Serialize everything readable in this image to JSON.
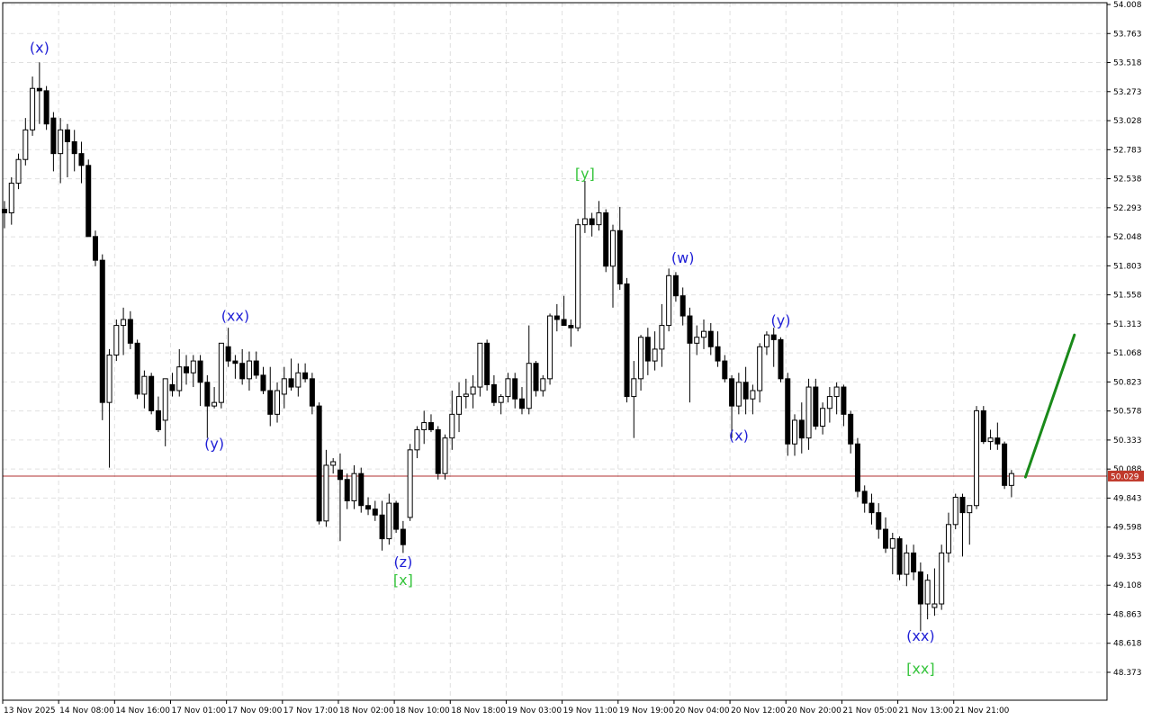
{
  "chart_data": {
    "type": "candlestick",
    "y_axis": {
      "min": 48.13,
      "max": 54.008,
      "ticks": [
        "54.008",
        "53.763",
        "53.518",
        "53.273",
        "53.028",
        "52.783",
        "52.538",
        "52.293",
        "52.048",
        "51.803",
        "51.558",
        "51.313",
        "51.068",
        "50.823",
        "50.578",
        "50.333",
        "50.088",
        "49.843",
        "49.598",
        "49.353",
        "49.108",
        "48.863",
        "48.618",
        "48.373"
      ]
    },
    "x_axis": {
      "ticks": [
        {
          "label": "13 Nov 2025",
          "index": 0
        },
        {
          "label": "14 Nov 08:00",
          "index": 8
        },
        {
          "label": "14 Nov 16:00",
          "index": 16
        },
        {
          "label": "17 Nov 01:00",
          "index": 24
        },
        {
          "label": "17 Nov 09:00",
          "index": 32
        },
        {
          "label": "17 Nov 17:00",
          "index": 40
        },
        {
          "label": "18 Nov 02:00",
          "index": 48
        },
        {
          "label": "18 Nov 10:00",
          "index": 56
        },
        {
          "label": "18 Nov 18:00",
          "index": 64
        },
        {
          "label": "19 Nov 03:00",
          "index": 72
        },
        {
          "label": "19 Nov 11:00",
          "index": 80
        },
        {
          "label": "19 Nov 19:00",
          "index": 88
        },
        {
          "label": "20 Nov 04:00",
          "index": 96
        },
        {
          "label": "20 Nov 12:00",
          "index": 104
        },
        {
          "label": "20 Nov 20:00",
          "index": 112
        },
        {
          "label": "21 Nov 05:00",
          "index": 120
        },
        {
          "label": "21 Nov 13:00",
          "index": 128
        },
        {
          "label": "21 Nov 21:00",
          "index": 136
        }
      ]
    },
    "candles": [
      [
        52.28,
        52.35,
        52.12,
        52.25
      ],
      [
        52.25,
        52.55,
        52.15,
        52.5
      ],
      [
        52.5,
        52.75,
        52.45,
        52.7
      ],
      [
        52.7,
        53.05,
        52.65,
        52.95
      ],
      [
        52.95,
        53.4,
        52.9,
        53.3
      ],
      [
        53.3,
        53.52,
        53.0,
        53.28
      ],
      [
        53.28,
        53.32,
        52.95,
        53.0
      ],
      [
        53.05,
        53.1,
        52.6,
        52.75
      ],
      [
        52.75,
        53.05,
        52.5,
        52.95
      ],
      [
        52.95,
        53.0,
        52.55,
        52.85
      ],
      [
        52.85,
        52.95,
        52.6,
        52.75
      ],
      [
        52.75,
        52.85,
        52.5,
        52.65
      ],
      [
        52.65,
        52.7,
        52.05,
        52.05
      ],
      [
        52.05,
        52.1,
        51.8,
        51.85
      ],
      [
        51.85,
        51.9,
        50.5,
        50.65
      ],
      [
        50.65,
        51.1,
        50.1,
        51.05
      ],
      [
        51.05,
        51.35,
        51.0,
        51.3
      ],
      [
        51.3,
        51.45,
        51.05,
        51.35
      ],
      [
        51.35,
        51.42,
        51.1,
        51.15
      ],
      [
        51.15,
        51.18,
        50.68,
        50.72
      ],
      [
        50.72,
        50.92,
        50.6,
        50.87
      ],
      [
        50.87,
        50.9,
        50.55,
        50.58
      ],
      [
        50.58,
        50.7,
        50.4,
        50.42
      ],
      [
        50.5,
        50.85,
        50.28,
        50.85
      ],
      [
        50.8,
        50.9,
        50.7,
        50.75
      ],
      [
        50.75,
        51.1,
        50.7,
        50.95
      ],
      [
        50.95,
        51.05,
        50.8,
        50.9
      ],
      [
        50.9,
        51.05,
        50.78,
        51.0
      ],
      [
        51.0,
        51.05,
        50.62,
        50.82
      ],
      [
        50.82,
        50.88,
        50.35,
        50.62
      ],
      [
        50.62,
        50.78,
        50.6,
        50.65
      ],
      [
        50.65,
        51.15,
        50.6,
        51.15
      ],
      [
        51.12,
        51.28,
        50.95,
        51.0
      ],
      [
        51.0,
        51.05,
        50.85,
        50.98
      ],
      [
        50.98,
        51.1,
        50.8,
        50.85
      ],
      [
        50.85,
        51.08,
        50.75,
        51.0
      ],
      [
        51.0,
        51.08,
        50.85,
        50.88
      ],
      [
        50.88,
        50.95,
        50.72,
        50.75
      ],
      [
        50.75,
        50.95,
        50.45,
        50.55
      ],
      [
        50.55,
        50.82,
        50.48,
        50.75
      ],
      [
        50.72,
        50.95,
        50.6,
        50.85
      ],
      [
        50.85,
        51.02,
        50.75,
        50.78
      ],
      [
        50.78,
        50.98,
        50.7,
        50.9
      ],
      [
        50.9,
        50.98,
        50.82,
        50.85
      ],
      [
        50.85,
        50.9,
        50.55,
        50.62
      ],
      [
        50.62,
        50.65,
        49.62,
        49.65
      ],
      [
        49.65,
        50.25,
        49.6,
        50.12
      ],
      [
        50.12,
        50.18,
        50.05,
        50.15
      ],
      [
        50.08,
        50.22,
        49.48,
        50.0
      ],
      [
        50.0,
        50.05,
        49.75,
        49.82
      ],
      [
        49.82,
        50.12,
        49.75,
        50.05
      ],
      [
        50.05,
        50.1,
        49.72,
        49.78
      ],
      [
        49.78,
        49.85,
        49.7,
        49.75
      ],
      [
        49.75,
        49.82,
        49.65,
        49.7
      ],
      [
        49.7,
        49.82,
        49.4,
        49.5
      ],
      [
        49.5,
        49.88,
        49.45,
        49.8
      ],
      [
        49.8,
        49.82,
        49.55,
        49.58
      ],
      [
        49.58,
        49.65,
        49.38,
        49.45
      ],
      [
        49.68,
        50.3,
        49.65,
        50.25
      ],
      [
        50.25,
        50.45,
        50.18,
        50.42
      ],
      [
        50.42,
        50.58,
        50.3,
        50.48
      ],
      [
        50.48,
        50.55,
        50.4,
        50.42
      ],
      [
        50.42,
        50.45,
        50.0,
        50.05
      ],
      [
        50.05,
        50.38,
        50.0,
        50.35
      ],
      [
        50.35,
        50.75,
        50.25,
        50.55
      ],
      [
        50.55,
        50.82,
        50.4,
        50.7
      ],
      [
        50.7,
        50.85,
        50.6,
        50.72
      ],
      [
        50.72,
        50.88,
        50.6,
        50.78
      ],
      [
        50.78,
        51.15,
        50.7,
        51.15
      ],
      [
        51.15,
        51.18,
        50.75,
        50.8
      ],
      [
        50.8,
        50.88,
        50.62,
        50.65
      ],
      [
        50.65,
        50.72,
        50.55,
        50.7
      ],
      [
        50.7,
        50.9,
        50.65,
        50.85
      ],
      [
        50.85,
        50.9,
        50.6,
        50.68
      ],
      [
        50.68,
        50.78,
        50.55,
        50.6
      ],
      [
        50.6,
        51.3,
        50.55,
        50.98
      ],
      [
        50.98,
        51.0,
        50.7,
        50.75
      ],
      [
        50.75,
        50.88,
        50.7,
        50.85
      ],
      [
        50.85,
        51.4,
        50.8,
        51.38
      ],
      [
        51.38,
        51.48,
        51.25,
        51.35
      ],
      [
        51.35,
        51.55,
        51.32,
        51.3
      ],
      [
        51.3,
        51.35,
        51.12,
        51.28
      ],
      [
        51.28,
        52.2,
        51.25,
        52.15
      ],
      [
        52.15,
        52.52,
        52.08,
        52.2
      ],
      [
        52.2,
        52.25,
        52.05,
        52.15
      ],
      [
        52.15,
        52.35,
        52.1,
        52.25
      ],
      [
        52.25,
        52.28,
        51.75,
        51.8
      ],
      [
        51.8,
        52.15,
        51.45,
        52.1
      ],
      [
        52.1,
        52.3,
        51.6,
        51.65
      ],
      [
        51.65,
        51.7,
        50.65,
        50.7
      ],
      [
        50.7,
        51.0,
        50.35,
        50.85
      ],
      [
        50.85,
        51.22,
        50.75,
        51.2
      ],
      [
        51.2,
        51.28,
        50.88,
        51.0
      ],
      [
        51.0,
        51.25,
        50.92,
        51.1
      ],
      [
        51.1,
        51.48,
        50.95,
        51.3
      ],
      [
        51.3,
        51.78,
        51.25,
        51.72
      ],
      [
        51.72,
        51.75,
        51.5,
        51.55
      ],
      [
        51.55,
        51.62,
        51.3,
        51.38
      ],
      [
        51.38,
        51.45,
        50.65,
        51.15
      ],
      [
        51.15,
        51.3,
        51.05,
        51.2
      ],
      [
        51.2,
        51.35,
        51.1,
        51.25
      ],
      [
        51.25,
        51.32,
        51.05,
        51.12
      ],
      [
        51.12,
        51.25,
        50.95,
        51.0
      ],
      [
        51.0,
        51.05,
        50.82,
        50.85
      ],
      [
        50.85,
        50.88,
        50.35,
        50.62
      ],
      [
        50.62,
        50.9,
        50.55,
        50.82
      ],
      [
        50.82,
        50.95,
        50.55,
        50.68
      ],
      [
        50.68,
        50.8,
        50.55,
        50.75
      ],
      [
        50.75,
        51.15,
        50.65,
        51.12
      ],
      [
        51.12,
        51.25,
        51.05,
        51.22
      ],
      [
        51.22,
        51.28,
        50.95,
        51.18
      ],
      [
        51.18,
        51.2,
        50.82,
        50.85
      ],
      [
        50.85,
        50.9,
        50.2,
        50.3
      ],
      [
        50.3,
        50.55,
        50.2,
        50.5
      ],
      [
        50.5,
        50.65,
        50.22,
        50.35
      ],
      [
        50.35,
        50.85,
        50.25,
        50.78
      ],
      [
        50.78,
        50.85,
        50.42,
        50.45
      ],
      [
        50.45,
        50.65,
        50.38,
        50.6
      ],
      [
        50.6,
        50.78,
        50.48,
        50.7
      ],
      [
        50.7,
        50.82,
        50.55,
        50.78
      ],
      [
        50.78,
        50.8,
        50.45,
        50.55
      ],
      [
        50.55,
        50.58,
        50.22,
        50.3
      ],
      [
        50.3,
        50.35,
        49.85,
        49.9
      ],
      [
        49.9,
        49.95,
        49.72,
        49.8
      ],
      [
        49.8,
        49.88,
        49.62,
        49.72
      ],
      [
        49.72,
        49.8,
        49.5,
        49.58
      ],
      [
        49.58,
        49.68,
        49.38,
        49.42
      ],
      [
        49.42,
        49.55,
        49.2,
        49.5
      ],
      [
        49.5,
        49.52,
        49.15,
        49.2
      ],
      [
        49.2,
        49.45,
        49.1,
        49.38
      ],
      [
        49.38,
        49.45,
        49.15,
        49.22
      ],
      [
        49.22,
        49.3,
        48.72,
        48.95
      ],
      [
        48.95,
        49.2,
        48.82,
        49.15
      ],
      [
        48.92,
        49.25,
        48.85,
        48.95
      ],
      [
        48.95,
        49.45,
        48.9,
        49.38
      ],
      [
        49.38,
        49.72,
        49.3,
        49.62
      ],
      [
        49.62,
        49.88,
        49.58,
        49.85
      ],
      [
        49.85,
        49.88,
        49.35,
        49.72
      ],
      [
        49.72,
        49.78,
        49.45,
        49.78
      ],
      [
        49.78,
        50.62,
        49.75,
        50.58
      ],
      [
        50.58,
        50.62,
        50.3,
        50.32
      ],
      [
        50.32,
        50.42,
        50.25,
        50.35
      ],
      [
        50.35,
        50.48,
        50.25,
        50.3
      ],
      [
        50.3,
        50.32,
        49.92,
        49.95
      ],
      [
        49.95,
        50.08,
        49.85,
        50.05
      ]
    ],
    "last_price": "50.029",
    "forecast": {
      "start_index": 146,
      "start_price": 50.02,
      "end_index": 153,
      "end_price": 51.22
    },
    "wave_labels": [
      {
        "text": "(x)",
        "index": 5,
        "price": 53.6,
        "color": "blue"
      },
      {
        "text": "(xx)",
        "index": 33,
        "price": 51.34,
        "color": "blue"
      },
      {
        "text": "(y)",
        "index": 30,
        "price": 50.26,
        "color": "blue"
      },
      {
        "text": "(z)",
        "index": 57,
        "price": 49.26,
        "color": "blue"
      },
      {
        "text": "[x]",
        "index": 57,
        "price": 49.11,
        "color": "green"
      },
      {
        "text": "[y]",
        "index": 83,
        "price": 52.54,
        "color": "green"
      },
      {
        "text": "(w)",
        "index": 97,
        "price": 51.83,
        "color": "blue"
      },
      {
        "text": "(x)",
        "index": 105,
        "price": 50.33,
        "color": "blue"
      },
      {
        "text": "(y)",
        "index": 111,
        "price": 51.3,
        "color": "blue"
      },
      {
        "text": "(xx)",
        "index": 131,
        "price": 48.64,
        "color": "blue"
      },
      {
        "text": "[xx]",
        "index": 131,
        "price": 48.36,
        "color": "green"
      }
    ],
    "colors": {
      "bull_body": "#ffffff",
      "bear_body": "#000000",
      "wick": "#000000",
      "grid": "#c8c8c8",
      "price_line": "#b03030",
      "price_label_bg": "#c0392b",
      "forecast": "#1a8a1a",
      "wave_blue": "#1f1fd6",
      "wave_green": "#35c43b"
    }
  }
}
